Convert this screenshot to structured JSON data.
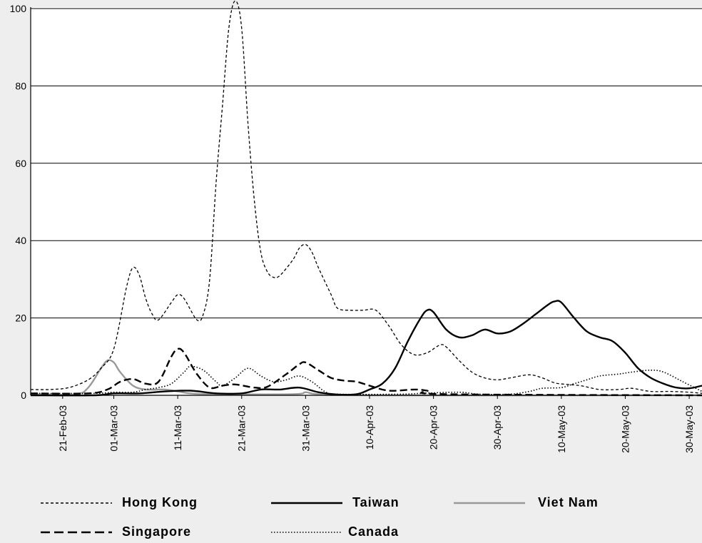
{
  "chart_data": {
    "type": "line",
    "title": "",
    "xlabel": "",
    "ylabel": "",
    "ylim": [
      0,
      100
    ],
    "yticks": [
      "0",
      "20",
      "40",
      "60",
      "80",
      "100"
    ],
    "grid": "horizontal",
    "legend_position": "bottom",
    "xtick_labels": [
      "21-Feb-03",
      "01-Mar-03",
      "11-Mar-03",
      "21-Mar-03",
      "31-Mar-03",
      "10-Apr-03",
      "20-Apr-03",
      "30-Apr-03",
      "10-May-03",
      "20-May-03",
      "30-May-03"
    ],
    "series": [
      {
        "name": "Hong Kong",
        "style": "dashed-fine",
        "color": "#000000",
        "points": [
          [
            "2003-02-16",
            1.5
          ],
          [
            "2003-02-19",
            1.5
          ],
          [
            "2003-02-22",
            2
          ],
          [
            "2003-02-25",
            4
          ],
          [
            "2003-02-27",
            7
          ],
          [
            "2003-03-01",
            12
          ],
          [
            "2003-03-03",
            28
          ],
          [
            "2003-03-04",
            33
          ],
          [
            "2003-03-05",
            31
          ],
          [
            "2003-03-06",
            25
          ],
          [
            "2003-03-07",
            21
          ],
          [
            "2003-03-08",
            19.5
          ],
          [
            "2003-03-10",
            24
          ],
          [
            "2003-03-11",
            26
          ],
          [
            "2003-03-12",
            25
          ],
          [
            "2003-03-14",
            19.5
          ],
          [
            "2003-03-15",
            21
          ],
          [
            "2003-03-16",
            30
          ],
          [
            "2003-03-17",
            55
          ],
          [
            "2003-03-18",
            75
          ],
          [
            "2003-03-19",
            95
          ],
          [
            "2003-03-20",
            102
          ],
          [
            "2003-03-21",
            95
          ],
          [
            "2003-03-22",
            70
          ],
          [
            "2003-03-23",
            50
          ],
          [
            "2003-03-24",
            37
          ],
          [
            "2003-03-25",
            32
          ],
          [
            "2003-03-26",
            30.5
          ],
          [
            "2003-03-27",
            31
          ],
          [
            "2003-03-29",
            35
          ],
          [
            "2003-03-30",
            38
          ],
          [
            "2003-03-31",
            39
          ],
          [
            "2003-04-01",
            37
          ],
          [
            "2003-04-02",
            33
          ],
          [
            "2003-04-04",
            26
          ],
          [
            "2003-04-05",
            22.5
          ],
          [
            "2003-04-07",
            22
          ],
          [
            "2003-04-09",
            22
          ],
          [
            "2003-04-11",
            22
          ],
          [
            "2003-04-13",
            18
          ],
          [
            "2003-04-15",
            13
          ],
          [
            "2003-04-17",
            10.5
          ],
          [
            "2003-04-19",
            11
          ],
          [
            "2003-04-21",
            13
          ],
          [
            "2003-04-22",
            12.5
          ],
          [
            "2003-04-24",
            9
          ],
          [
            "2003-04-26",
            6
          ],
          [
            "2003-04-28",
            4.5
          ],
          [
            "2003-04-30",
            4
          ],
          [
            "2003-05-02",
            4.5
          ],
          [
            "2003-05-05",
            5.3
          ],
          [
            "2003-05-07",
            4.5
          ],
          [
            "2003-05-09",
            3.2
          ],
          [
            "2003-05-11",
            2.8
          ],
          [
            "2003-05-13",
            2.5
          ],
          [
            "2003-05-16",
            1.5
          ],
          [
            "2003-05-19",
            1.5
          ],
          [
            "2003-05-21",
            1.8
          ],
          [
            "2003-05-24",
            1
          ],
          [
            "2003-05-27",
            1
          ],
          [
            "2003-05-30",
            0.8
          ],
          [
            "2003-06-01",
            0.5
          ]
        ]
      },
      {
        "name": "Taiwan",
        "style": "solid",
        "color": "#000000",
        "points": [
          [
            "2003-02-16",
            0
          ],
          [
            "2003-02-26",
            0
          ],
          [
            "2003-03-01",
            0.5
          ],
          [
            "2003-03-05",
            0.5
          ],
          [
            "2003-03-09",
            1
          ],
          [
            "2003-03-13",
            1.2
          ],
          [
            "2003-03-17",
            0.5
          ],
          [
            "2003-03-21",
            0.5
          ],
          [
            "2003-03-24",
            1.5
          ],
          [
            "2003-03-27",
            1.5
          ],
          [
            "2003-03-30",
            2
          ],
          [
            "2003-04-02",
            0.8
          ],
          [
            "2003-04-05",
            0.2
          ],
          [
            "2003-04-08",
            0.3
          ],
          [
            "2003-04-10",
            1.5
          ],
          [
            "2003-04-12",
            3
          ],
          [
            "2003-04-14",
            7
          ],
          [
            "2003-04-16",
            14
          ],
          [
            "2003-04-18",
            20
          ],
          [
            "2003-04-19",
            22
          ],
          [
            "2003-04-20",
            21.5
          ],
          [
            "2003-04-22",
            17
          ],
          [
            "2003-04-24",
            15
          ],
          [
            "2003-04-26",
            15.5
          ],
          [
            "2003-04-28",
            17
          ],
          [
            "2003-04-30",
            16
          ],
          [
            "2003-05-02",
            16.5
          ],
          [
            "2003-05-04",
            18.5
          ],
          [
            "2003-05-06",
            21
          ],
          [
            "2003-05-08",
            23.5
          ],
          [
            "2003-05-09",
            24.3
          ],
          [
            "2003-05-10",
            24
          ],
          [
            "2003-05-12",
            20
          ],
          [
            "2003-05-14",
            16.5
          ],
          [
            "2003-05-16",
            15
          ],
          [
            "2003-05-18",
            14
          ],
          [
            "2003-05-20",
            11
          ],
          [
            "2003-05-22",
            7
          ],
          [
            "2003-05-24",
            4.5
          ],
          [
            "2003-05-26",
            3
          ],
          [
            "2003-05-28",
            2
          ],
          [
            "2003-05-30",
            1.8
          ],
          [
            "2003-06-01",
            2.5
          ]
        ]
      },
      {
        "name": "Viet Nam",
        "style": "solid",
        "color": "#999999",
        "points": [
          [
            "2003-02-16",
            0.3
          ],
          [
            "2003-02-23",
            0.3
          ],
          [
            "2003-02-25",
            2
          ],
          [
            "2003-02-27",
            7
          ],
          [
            "2003-02-28",
            9
          ],
          [
            "2003-03-01",
            8.5
          ],
          [
            "2003-03-02",
            6
          ],
          [
            "2003-03-04",
            2.5
          ],
          [
            "2003-03-06",
            1.5
          ],
          [
            "2003-03-09",
            1.5
          ],
          [
            "2003-03-11",
            1
          ],
          [
            "2003-03-13",
            0.5
          ],
          [
            "2003-03-16",
            0.3
          ],
          [
            "2003-03-29",
            0.3
          ],
          [
            "2003-03-31",
            0.8
          ],
          [
            "2003-04-02",
            0.3
          ],
          [
            "2003-04-10",
            0
          ],
          [
            "2003-06-01",
            0
          ]
        ]
      },
      {
        "name": "Singapore",
        "style": "dashed-long",
        "color": "#000000",
        "points": [
          [
            "2003-02-16",
            0.5
          ],
          [
            "2003-02-25",
            0.5
          ],
          [
            "2003-02-28",
            1.5
          ],
          [
            "2003-03-02",
            3.5
          ],
          [
            "2003-03-04",
            4.2
          ],
          [
            "2003-03-06",
            3
          ],
          [
            "2003-03-08",
            3.5
          ],
          [
            "2003-03-10",
            10
          ],
          [
            "2003-03-11",
            12
          ],
          [
            "2003-03-12",
            11
          ],
          [
            "2003-03-14",
            5.5
          ],
          [
            "2003-03-16",
            2
          ],
          [
            "2003-03-18",
            2.5
          ],
          [
            "2003-03-20",
            2.8
          ],
          [
            "2003-03-23",
            2
          ],
          [
            "2003-03-25",
            2.2
          ],
          [
            "2003-03-28",
            5.5
          ],
          [
            "2003-03-30",
            8
          ],
          [
            "2003-03-31",
            8.5
          ],
          [
            "2003-04-02",
            6.5
          ],
          [
            "2003-04-04",
            4.5
          ],
          [
            "2003-04-06",
            3.8
          ],
          [
            "2003-04-08",
            3.5
          ],
          [
            "2003-04-10",
            2.5
          ],
          [
            "2003-04-13",
            1.2
          ],
          [
            "2003-04-17",
            1.5
          ],
          [
            "2003-04-19",
            1.2
          ],
          [
            "2003-04-22",
            0.3
          ],
          [
            "2003-06-01",
            0
          ]
        ]
      },
      {
        "name": "Canada",
        "style": "dotted",
        "color": "#000000",
        "points": [
          [
            "2003-02-16",
            0.5
          ],
          [
            "2003-02-26",
            0.5
          ],
          [
            "2003-03-01",
            0.8
          ],
          [
            "2003-03-04",
            0.8
          ],
          [
            "2003-03-06",
            1.5
          ],
          [
            "2003-03-08",
            2
          ],
          [
            "2003-03-10",
            3
          ],
          [
            "2003-03-12",
            6
          ],
          [
            "2003-03-13",
            7.5
          ],
          [
            "2003-03-15",
            6.5
          ],
          [
            "2003-03-17",
            3.5
          ],
          [
            "2003-03-18",
            2.5
          ],
          [
            "2003-03-20",
            4.5
          ],
          [
            "2003-03-22",
            7
          ],
          [
            "2003-03-24",
            5
          ],
          [
            "2003-03-26",
            3.5
          ],
          [
            "2003-03-28",
            4
          ],
          [
            "2003-03-30",
            5
          ],
          [
            "2003-04-01",
            3.5
          ],
          [
            "2003-04-03",
            1
          ],
          [
            "2003-04-05",
            0.3
          ],
          [
            "2003-04-15",
            0.3
          ],
          [
            "2003-04-18",
            0.5
          ],
          [
            "2003-04-24",
            0.8
          ],
          [
            "2003-04-27",
            0.3
          ],
          [
            "2003-05-02",
            0.3
          ],
          [
            "2003-05-05",
            1
          ],
          [
            "2003-05-07",
            1.8
          ],
          [
            "2003-05-10",
            2
          ],
          [
            "2003-05-12",
            3
          ],
          [
            "2003-05-14",
            4
          ],
          [
            "2003-05-16",
            5
          ],
          [
            "2003-05-19",
            5.5
          ],
          [
            "2003-05-21",
            6
          ],
          [
            "2003-05-24",
            6.5
          ],
          [
            "2003-05-26",
            6
          ],
          [
            "2003-05-29",
            3.5
          ],
          [
            "2003-06-01",
            1
          ]
        ]
      }
    ]
  }
}
